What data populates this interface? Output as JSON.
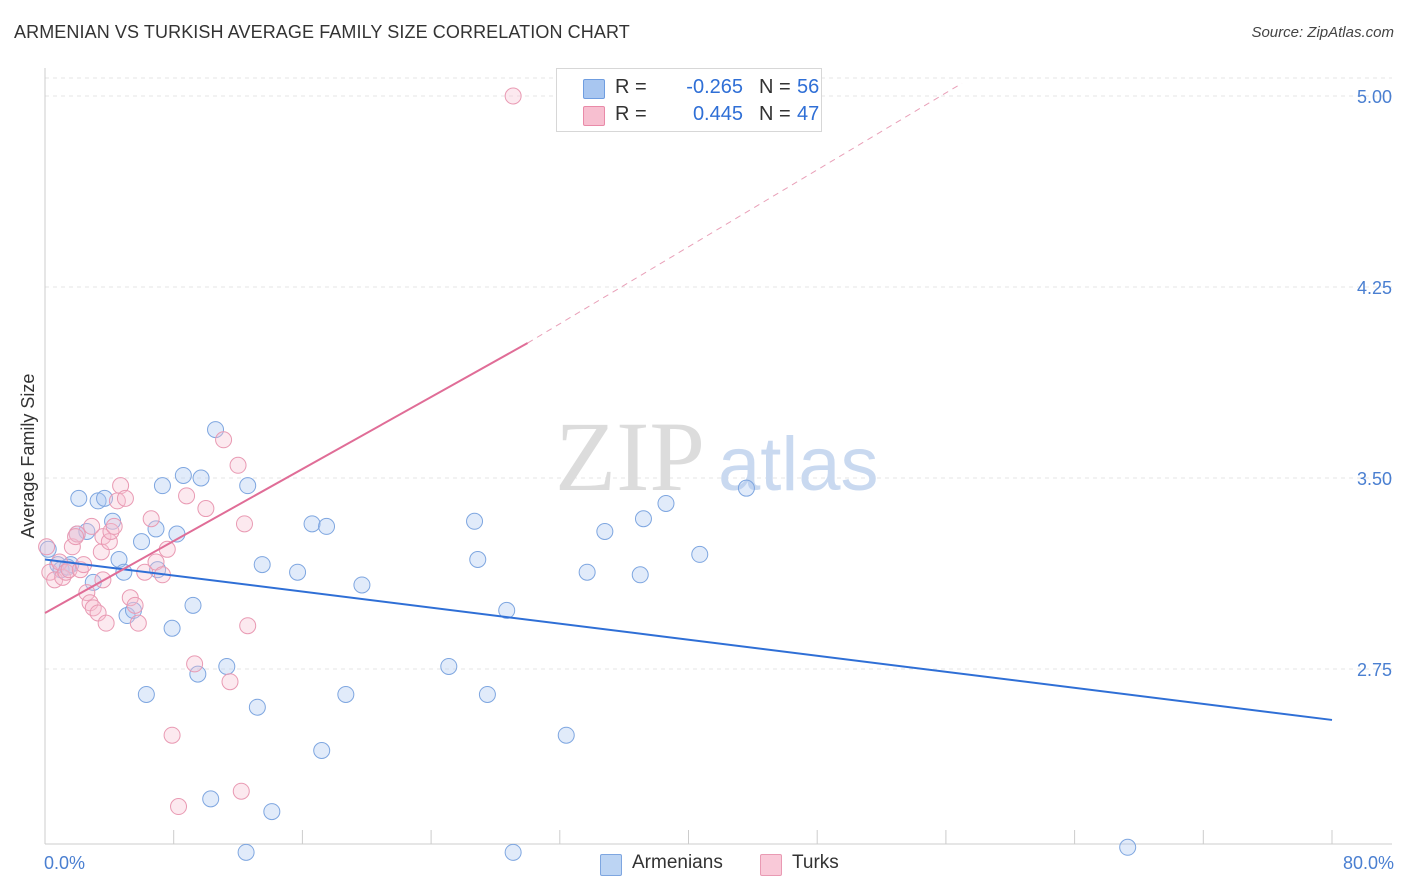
{
  "title": "ARMENIAN VS TURKISH AVERAGE FAMILY SIZE CORRELATION CHART",
  "source": "Source: ZipAtlas.com",
  "legend": {
    "rows": [
      {
        "r_label": "R =",
        "r_value": "-0.265",
        "n_label": "N =",
        "n_value": "56",
        "color": "#a8c6f0",
        "border": "#6f9de0"
      },
      {
        "r_label": "R =",
        "r_value": "0.445",
        "n_label": "N =",
        "n_value": "47",
        "color": "#f7bfd0",
        "border": "#e98aa8"
      }
    ]
  },
  "bottom_legend": [
    {
      "label": "Armenians",
      "color": "#bcd4f3",
      "border": "#7ea6e0"
    },
    {
      "label": "Turks",
      "color": "#f9c9d8",
      "border": "#e99ab3"
    }
  ],
  "watermark": {
    "zip": "ZIP",
    "atlas": "atlas"
  },
  "chart_data": {
    "type": "scatter",
    "title": "ARMENIAN VS TURKISH AVERAGE FAMILY SIZE CORRELATION CHART",
    "xlabel": "",
    "ylabel": "Average Family Size",
    "xlim": [
      0,
      80
    ],
    "ylim": [
      2.0,
      5.1
    ],
    "x_tick_labels": [
      "0.0%",
      "80.0%"
    ],
    "y_ticks": [
      2.75,
      3.5,
      4.25,
      5.0
    ],
    "y_tick_labels": [
      "2.75",
      "3.50",
      "4.25",
      "5.00"
    ],
    "grid": true,
    "series": [
      {
        "name": "Armenians",
        "color": "#7ea6e0",
        "trend": {
          "x0": 0,
          "y0": 3.18,
          "x1": 80,
          "y1": 2.55
        },
        "points": [
          [
            0.2,
            3.22
          ],
          [
            0.8,
            3.16
          ],
          [
            1.6,
            3.16
          ],
          [
            2.0,
            3.28
          ],
          [
            2.1,
            3.42
          ],
          [
            2.6,
            3.29
          ],
          [
            3.0,
            3.09
          ],
          [
            3.3,
            3.41
          ],
          [
            3.7,
            3.42
          ],
          [
            4.2,
            3.33
          ],
          [
            4.6,
            3.18
          ],
          [
            5.1,
            2.96
          ],
          [
            5.5,
            2.98
          ],
          [
            6.0,
            3.25
          ],
          [
            6.3,
            2.65
          ],
          [
            6.9,
            3.3
          ],
          [
            7.3,
            3.47
          ],
          [
            7.9,
            2.91
          ],
          [
            8.2,
            3.28
          ],
          [
            8.6,
            3.51
          ],
          [
            9.2,
            3.0
          ],
          [
            9.5,
            2.73
          ],
          [
            10.3,
            2.24
          ],
          [
            10.6,
            3.69
          ],
          [
            11.3,
            2.76
          ],
          [
            12.6,
            3.47
          ],
          [
            13.2,
            2.6
          ],
          [
            13.5,
            3.16
          ],
          [
            14.1,
            2.19
          ],
          [
            15.7,
            3.13
          ],
          [
            16.6,
            3.32
          ],
          [
            17.2,
            2.43
          ],
          [
            17.5,
            3.31
          ],
          [
            18.7,
            2.65
          ],
          [
            19.7,
            3.08
          ],
          [
            25.1,
            2.76
          ],
          [
            26.7,
            3.33
          ],
          [
            26.9,
            3.18
          ],
          [
            27.5,
            2.65
          ],
          [
            28.7,
            2.98
          ],
          [
            32.4,
            2.49
          ],
          [
            33.7,
            3.13
          ],
          [
            34.8,
            3.29
          ],
          [
            37.0,
            3.12
          ],
          [
            37.2,
            3.34
          ],
          [
            38.6,
            3.4
          ],
          [
            40.7,
            3.2
          ],
          [
            43.6,
            3.46
          ],
          [
            12.5,
            2.03
          ],
          [
            29.1,
            2.03
          ],
          [
            67.3,
            2.05
          ],
          [
            1.0,
            3.14
          ],
          [
            4.9,
            3.13
          ],
          [
            9.7,
            3.5
          ],
          [
            1.4,
            3.15
          ],
          [
            7.0,
            3.14
          ]
        ]
      },
      {
        "name": "Turks",
        "color": "#e99ab3",
        "trend": {
          "x0": 0,
          "y0": 2.97,
          "x1": 30,
          "y1": 4.03,
          "dash_to_x": 57,
          "dash_to_y": 5.05
        },
        "points": [
          [
            0.1,
            3.23
          ],
          [
            0.3,
            3.13
          ],
          [
            0.6,
            3.1
          ],
          [
            0.9,
            3.17
          ],
          [
            1.1,
            3.11
          ],
          [
            1.3,
            3.13
          ],
          [
            1.5,
            3.14
          ],
          [
            1.7,
            3.23
          ],
          [
            2.0,
            3.28
          ],
          [
            2.2,
            3.14
          ],
          [
            2.4,
            3.16
          ],
          [
            2.6,
            3.05
          ],
          [
            2.8,
            3.01
          ],
          [
            3.0,
            2.99
          ],
          [
            3.3,
            2.97
          ],
          [
            3.5,
            3.21
          ],
          [
            3.6,
            3.27
          ],
          [
            3.8,
            2.93
          ],
          [
            4.0,
            3.25
          ],
          [
            4.1,
            3.29
          ],
          [
            4.5,
            3.41
          ],
          [
            4.7,
            3.47
          ],
          [
            5.0,
            3.42
          ],
          [
            5.3,
            3.03
          ],
          [
            5.6,
            3.0
          ],
          [
            5.8,
            2.93
          ],
          [
            6.2,
            3.13
          ],
          [
            6.6,
            3.34
          ],
          [
            6.9,
            3.17
          ],
          [
            7.3,
            3.12
          ],
          [
            7.6,
            3.22
          ],
          [
            7.9,
            2.49
          ],
          [
            8.3,
            2.21
          ],
          [
            8.8,
            3.43
          ],
          [
            9.3,
            2.77
          ],
          [
            10.0,
            3.38
          ],
          [
            11.1,
            3.65
          ],
          [
            11.5,
            2.7
          ],
          [
            12.0,
            3.55
          ],
          [
            12.2,
            2.27
          ],
          [
            12.4,
            3.32
          ],
          [
            12.6,
            2.92
          ],
          [
            29.1,
            5.0
          ],
          [
            4.3,
            3.31
          ],
          [
            2.9,
            3.31
          ],
          [
            1.9,
            3.27
          ],
          [
            3.6,
            3.1
          ]
        ]
      }
    ]
  }
}
